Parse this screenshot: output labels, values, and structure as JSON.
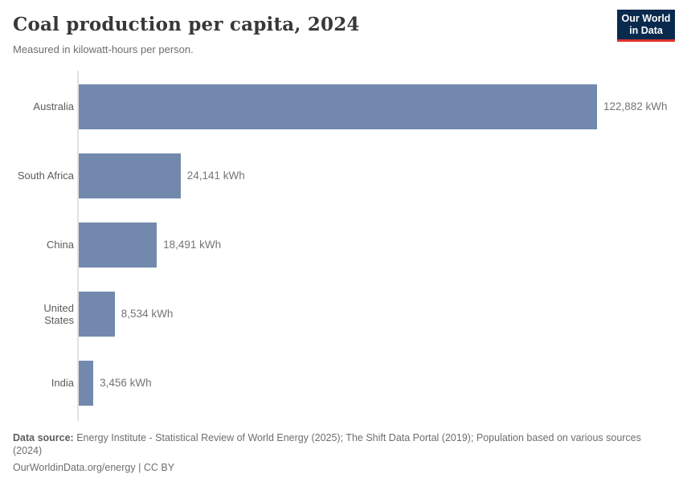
{
  "header": {
    "logo": {
      "line1": "Our World",
      "line2": "in Data",
      "bg_color": "#0a2a4d",
      "accent_color": "#e0332c"
    }
  },
  "chart_data": {
    "type": "bar",
    "orientation": "horizontal",
    "title": "Coal production per capita, 2024",
    "subtitle": "Measured in kilowatt-hours per person.",
    "unit": "kWh",
    "categories": [
      "Australia",
      "South Africa",
      "China",
      "United States",
      "India"
    ],
    "values": [
      122882,
      24141,
      18491,
      8534,
      3456
    ],
    "value_labels": [
      "122,882 kWh",
      "24,141 kWh",
      "18,491 kWh",
      "8,534 kWh",
      "3,456 kWh"
    ],
    "xlim": [
      0,
      122882
    ],
    "bar_color": "#7289ad",
    "grid": false,
    "legend": false
  },
  "footer": {
    "source_label": "Data source:",
    "source_text": " Energy Institute - Statistical Review of World Energy (2025); The Shift Data Portal (2019); Population based on various sources (2024)",
    "url": "OurWorldinData.org/energy",
    "separator": " | ",
    "license": "CC BY"
  }
}
